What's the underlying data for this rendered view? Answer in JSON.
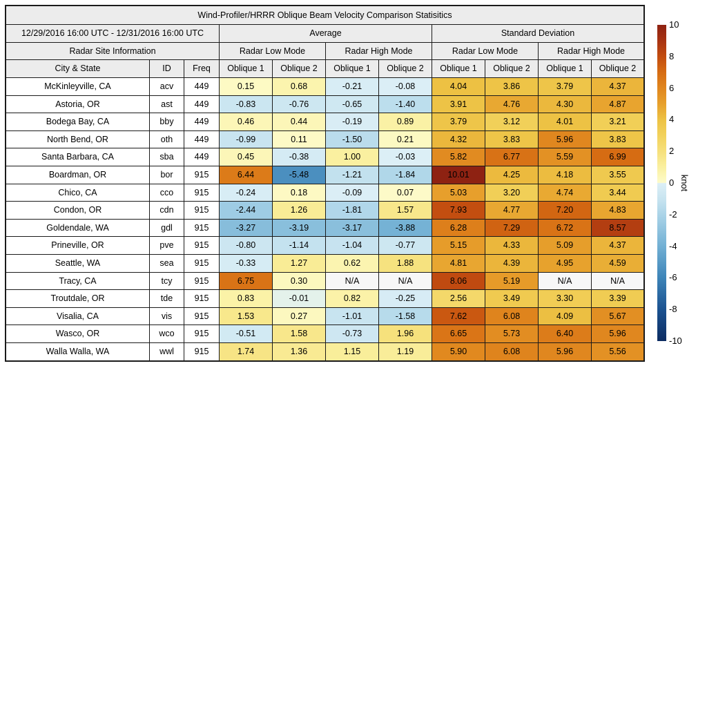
{
  "title": "Wind-Profiler/HRRR Oblique Beam Velocity Comparison Statisitics",
  "header": {
    "date_range": "12/29/2016 16:00 UTC - 12/31/2016 16:00 UTC",
    "group_average": "Average",
    "group_std": "Standard Deviation",
    "site_info": "Radar Site Information",
    "low_mode": "Radar Low Mode",
    "high_mode": "Radar High Mode",
    "col_city": "City & State",
    "col_id": "ID",
    "col_freq": "Freq",
    "oblique1": "Oblique 1",
    "oblique2": "Oblique 2"
  },
  "colorbar": {
    "label": "knot",
    "min": -10,
    "max": 10,
    "ticks": [
      10,
      8,
      6,
      4,
      2,
      0,
      -2,
      -4,
      -6,
      -8,
      -10
    ],
    "stops": [
      [
        -10,
        "#0c2c62"
      ],
      [
        -8,
        "#1b5290"
      ],
      [
        -6,
        "#3d84b8"
      ],
      [
        -4,
        "#72b0d4"
      ],
      [
        -2,
        "#abd4e8"
      ],
      [
        -1,
        "#c8e4f0"
      ],
      [
        -0.02,
        "#dceff6"
      ],
      [
        0.02,
        "#fdfbca"
      ],
      [
        1,
        "#faf0a0"
      ],
      [
        2,
        "#f6e07b"
      ],
      [
        3,
        "#f2d25c"
      ],
      [
        4,
        "#edc244"
      ],
      [
        5,
        "#e7a02c"
      ],
      [
        6,
        "#e0861e"
      ],
      [
        7,
        "#d66c13"
      ],
      [
        8,
        "#c24c10"
      ],
      [
        9,
        "#a83312"
      ],
      [
        10,
        "#8e2212"
      ]
    ]
  },
  "colors": {
    "na_cell": "#f7f7f7",
    "header_bg": "#ececec",
    "border": "#1a1a1a"
  },
  "chart_data": {
    "type": "heatmap",
    "title": "Wind-Profiler/HRRR Oblique Beam Velocity Comparison Statisitics",
    "period": "12/29/2016 16:00 UTC - 12/31/2016 16:00 UTC",
    "unit": "knot",
    "value_range": [
      -10,
      10
    ],
    "legend_position": "right-colorbar",
    "value_columns": [
      "Average Radar Low Mode Oblique 1",
      "Average Radar Low Mode Oblique 2",
      "Average Radar High Mode Oblique 1",
      "Average Radar High Mode Oblique 2",
      "Std Dev Radar Low Mode Oblique 1",
      "Std Dev Radar Low Mode Oblique 2",
      "Std Dev Radar High Mode Oblique 1",
      "Std Dev Radar High Mode Oblique 2"
    ],
    "rows": [
      {
        "city": "McKinleyville, CA",
        "id": "acv",
        "freq": "449",
        "values": [
          "0.15",
          "0.68",
          "-0.21",
          "-0.08",
          "4.04",
          "3.86",
          "3.79",
          "4.37"
        ]
      },
      {
        "city": "Astoria, OR",
        "id": "ast",
        "freq": "449",
        "values": [
          "-0.83",
          "-0.76",
          "-0.65",
          "-1.40",
          "3.91",
          "4.76",
          "4.30",
          "4.87"
        ]
      },
      {
        "city": "Bodega Bay, CA",
        "id": "bby",
        "freq": "449",
        "values": [
          "0.46",
          "0.44",
          "-0.19",
          "0.89",
          "3.79",
          "3.12",
          "4.01",
          "3.21"
        ]
      },
      {
        "city": "North Bend, OR",
        "id": "oth",
        "freq": "449",
        "values": [
          "-0.99",
          "0.11",
          "-1.50",
          "0.21",
          "4.32",
          "3.83",
          "5.96",
          "3.83"
        ]
      },
      {
        "city": "Santa Barbara, CA",
        "id": "sba",
        "freq": "449",
        "values": [
          "0.45",
          "-0.38",
          "1.00",
          "-0.03",
          "5.82",
          "6.77",
          "5.59",
          "6.99"
        ]
      },
      {
        "city": "Boardman, OR",
        "id": "bor",
        "freq": "915",
        "values": [
          "6.44",
          "-5.48",
          "-1.21",
          "-1.84",
          "10.01",
          "4.25",
          "4.18",
          "3.55"
        ]
      },
      {
        "city": "Chico, CA",
        "id": "cco",
        "freq": "915",
        "values": [
          "-0.24",
          "0.18",
          "-0.09",
          "0.07",
          "5.03",
          "3.20",
          "4.74",
          "3.44"
        ]
      },
      {
        "city": "Condon, OR",
        "id": "cdn",
        "freq": "915",
        "values": [
          "-2.44",
          "1.26",
          "-1.81",
          "1.57",
          "7.93",
          "4.77",
          "7.20",
          "4.83"
        ]
      },
      {
        "city": "Goldendale, WA",
        "id": "gdl",
        "freq": "915",
        "values": [
          "-3.27",
          "-3.19",
          "-3.17",
          "-3.88",
          "6.28",
          "7.29",
          "6.72",
          "8.57"
        ]
      },
      {
        "city": "Prineville, OR",
        "id": "pve",
        "freq": "915",
        "values": [
          "-0.80",
          "-1.14",
          "-1.04",
          "-0.77",
          "5.15",
          "4.33",
          "5.09",
          "4.37"
        ]
      },
      {
        "city": "Seattle, WA",
        "id": "sea",
        "freq": "915",
        "values": [
          "-0.33",
          "1.27",
          "0.62",
          "1.88",
          "4.81",
          "4.39",
          "4.95",
          "4.59"
        ]
      },
      {
        "city": "Tracy, CA",
        "id": "tcy",
        "freq": "915",
        "values": [
          "6.75",
          "0.30",
          "N/A",
          "N/A",
          "8.06",
          "5.19",
          "N/A",
          "N/A"
        ]
      },
      {
        "city": "Troutdale, OR",
        "id": "tde",
        "freq": "915",
        "values": [
          "0.83",
          "-0.01",
          "0.82",
          "-0.25",
          "2.56",
          "3.49",
          "3.30",
          "3.39"
        ]
      },
      {
        "city": "Visalia, CA",
        "id": "vis",
        "freq": "915",
        "values": [
          "1.53",
          "0.27",
          "-1.01",
          "-1.58",
          "7.62",
          "6.08",
          "4.09",
          "5.67"
        ]
      },
      {
        "city": "Wasco, OR",
        "id": "wco",
        "freq": "915",
        "values": [
          "-0.51",
          "1.58",
          "-0.73",
          "1.96",
          "6.65",
          "5.73",
          "6.40",
          "5.96"
        ]
      },
      {
        "city": "Walla Walla, WA",
        "id": "wwl",
        "freq": "915",
        "values": [
          "1.74",
          "1.36",
          "1.15",
          "1.19",
          "5.90",
          "6.08",
          "5.96",
          "5.56"
        ]
      }
    ]
  }
}
